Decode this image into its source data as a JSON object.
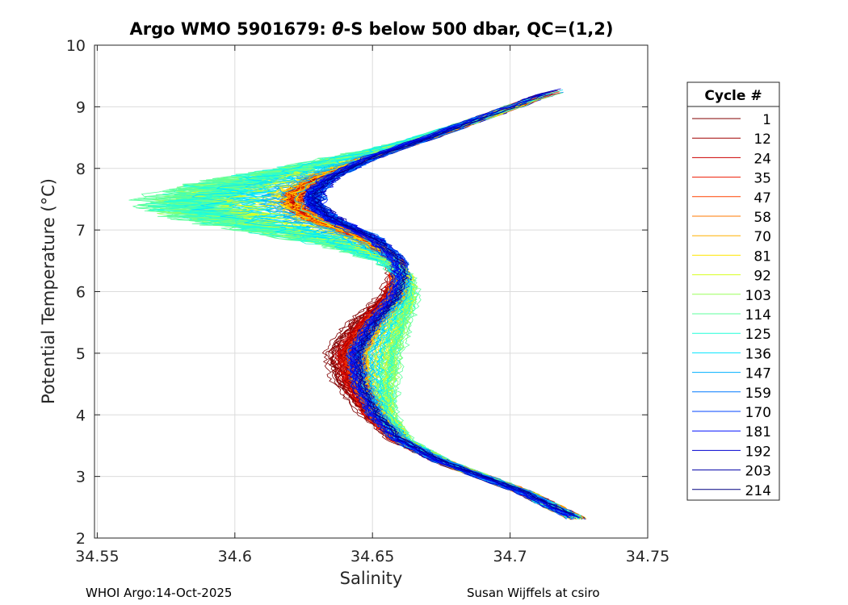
{
  "title": {
    "prefix": "Argo WMO 5901679: ",
    "theta": "θ",
    "suffix": "-S below 500 dbar,  QC=(1,2)"
  },
  "footer": {
    "left": "WHOI Argo:14-Oct-2025",
    "right": "Susan Wijffels at csiro"
  },
  "chart_data": {
    "type": "line",
    "title": "Argo WMO 5901679: θ-S below 500 dbar,  QC=(1,2)",
    "xlabel": "Salinity",
    "ylabel": "Potential Temperature (°C)",
    "xlim": [
      34.549,
      34.75
    ],
    "ylim": [
      2,
      10
    ],
    "xticks": [
      34.55,
      34.6,
      34.65,
      34.7,
      34.75
    ],
    "xtick_labels": [
      "34.55",
      "34.6",
      "34.65",
      "34.7",
      "34.75"
    ],
    "yticks": [
      2,
      3,
      4,
      5,
      6,
      7,
      8,
      9,
      10
    ],
    "ytick_labels": [
      "2",
      "3",
      "4",
      "5",
      "6",
      "7",
      "8",
      "9",
      "10"
    ],
    "grid": true,
    "legend": {
      "title": "Cycle #",
      "placement": "right-outside",
      "entries": [
        {
          "label": "1",
          "color": "#800000"
        },
        {
          "label": "12",
          "color": "#a00000"
        },
        {
          "label": "24",
          "color": "#cc0000"
        },
        {
          "label": "35",
          "color": "#ee1a00"
        },
        {
          "label": "47",
          "color": "#ff4400"
        },
        {
          "label": "58",
          "color": "#ff7a00"
        },
        {
          "label": "70",
          "color": "#ffb000"
        },
        {
          "label": "81",
          "color": "#ffe400"
        },
        {
          "label": "92",
          "color": "#d8ff20"
        },
        {
          "label": "103",
          "color": "#9cff5c"
        },
        {
          "label": "114",
          "color": "#5cff9c"
        },
        {
          "label": "125",
          "color": "#20ffd8"
        },
        {
          "label": "136",
          "color": "#00e4ff"
        },
        {
          "label": "147",
          "color": "#00b0ff"
        },
        {
          "label": "159",
          "color": "#007aff"
        },
        {
          "label": "170",
          "color": "#0044ff"
        },
        {
          "label": "181",
          "color": "#0010ff"
        },
        {
          "label": "192",
          "color": "#0000d0"
        },
        {
          "label": "203",
          "color": "#0000a8"
        },
        {
          "label": "214",
          "color": "#000080"
        }
      ]
    },
    "series_shape": {
      "description": "Family of theta-S profiles, one per cycle, colored by cycle number",
      "base_curve": [
        [
          34.724,
          2.33
        ],
        [
          34.716,
          2.5
        ],
        [
          34.705,
          2.75
        ],
        [
          34.69,
          3.0
        ],
        [
          34.675,
          3.25
        ],
        [
          34.66,
          3.6
        ],
        [
          34.652,
          4.0
        ],
        [
          34.647,
          4.5
        ],
        [
          34.646,
          5.0
        ],
        [
          34.652,
          5.5
        ],
        [
          34.659,
          5.9
        ],
        [
          34.661,
          6.2
        ],
        [
          34.659,
          6.5
        ],
        [
          34.649,
          6.85
        ],
        [
          34.633,
          7.15
        ],
        [
          34.625,
          7.4
        ],
        [
          34.625,
          7.6
        ],
        [
          34.632,
          7.85
        ],
        [
          34.647,
          8.15
        ],
        [
          34.67,
          8.5
        ],
        [
          34.695,
          8.9
        ],
        [
          34.712,
          9.18
        ],
        [
          34.722,
          9.3
        ]
      ]
    }
  }
}
